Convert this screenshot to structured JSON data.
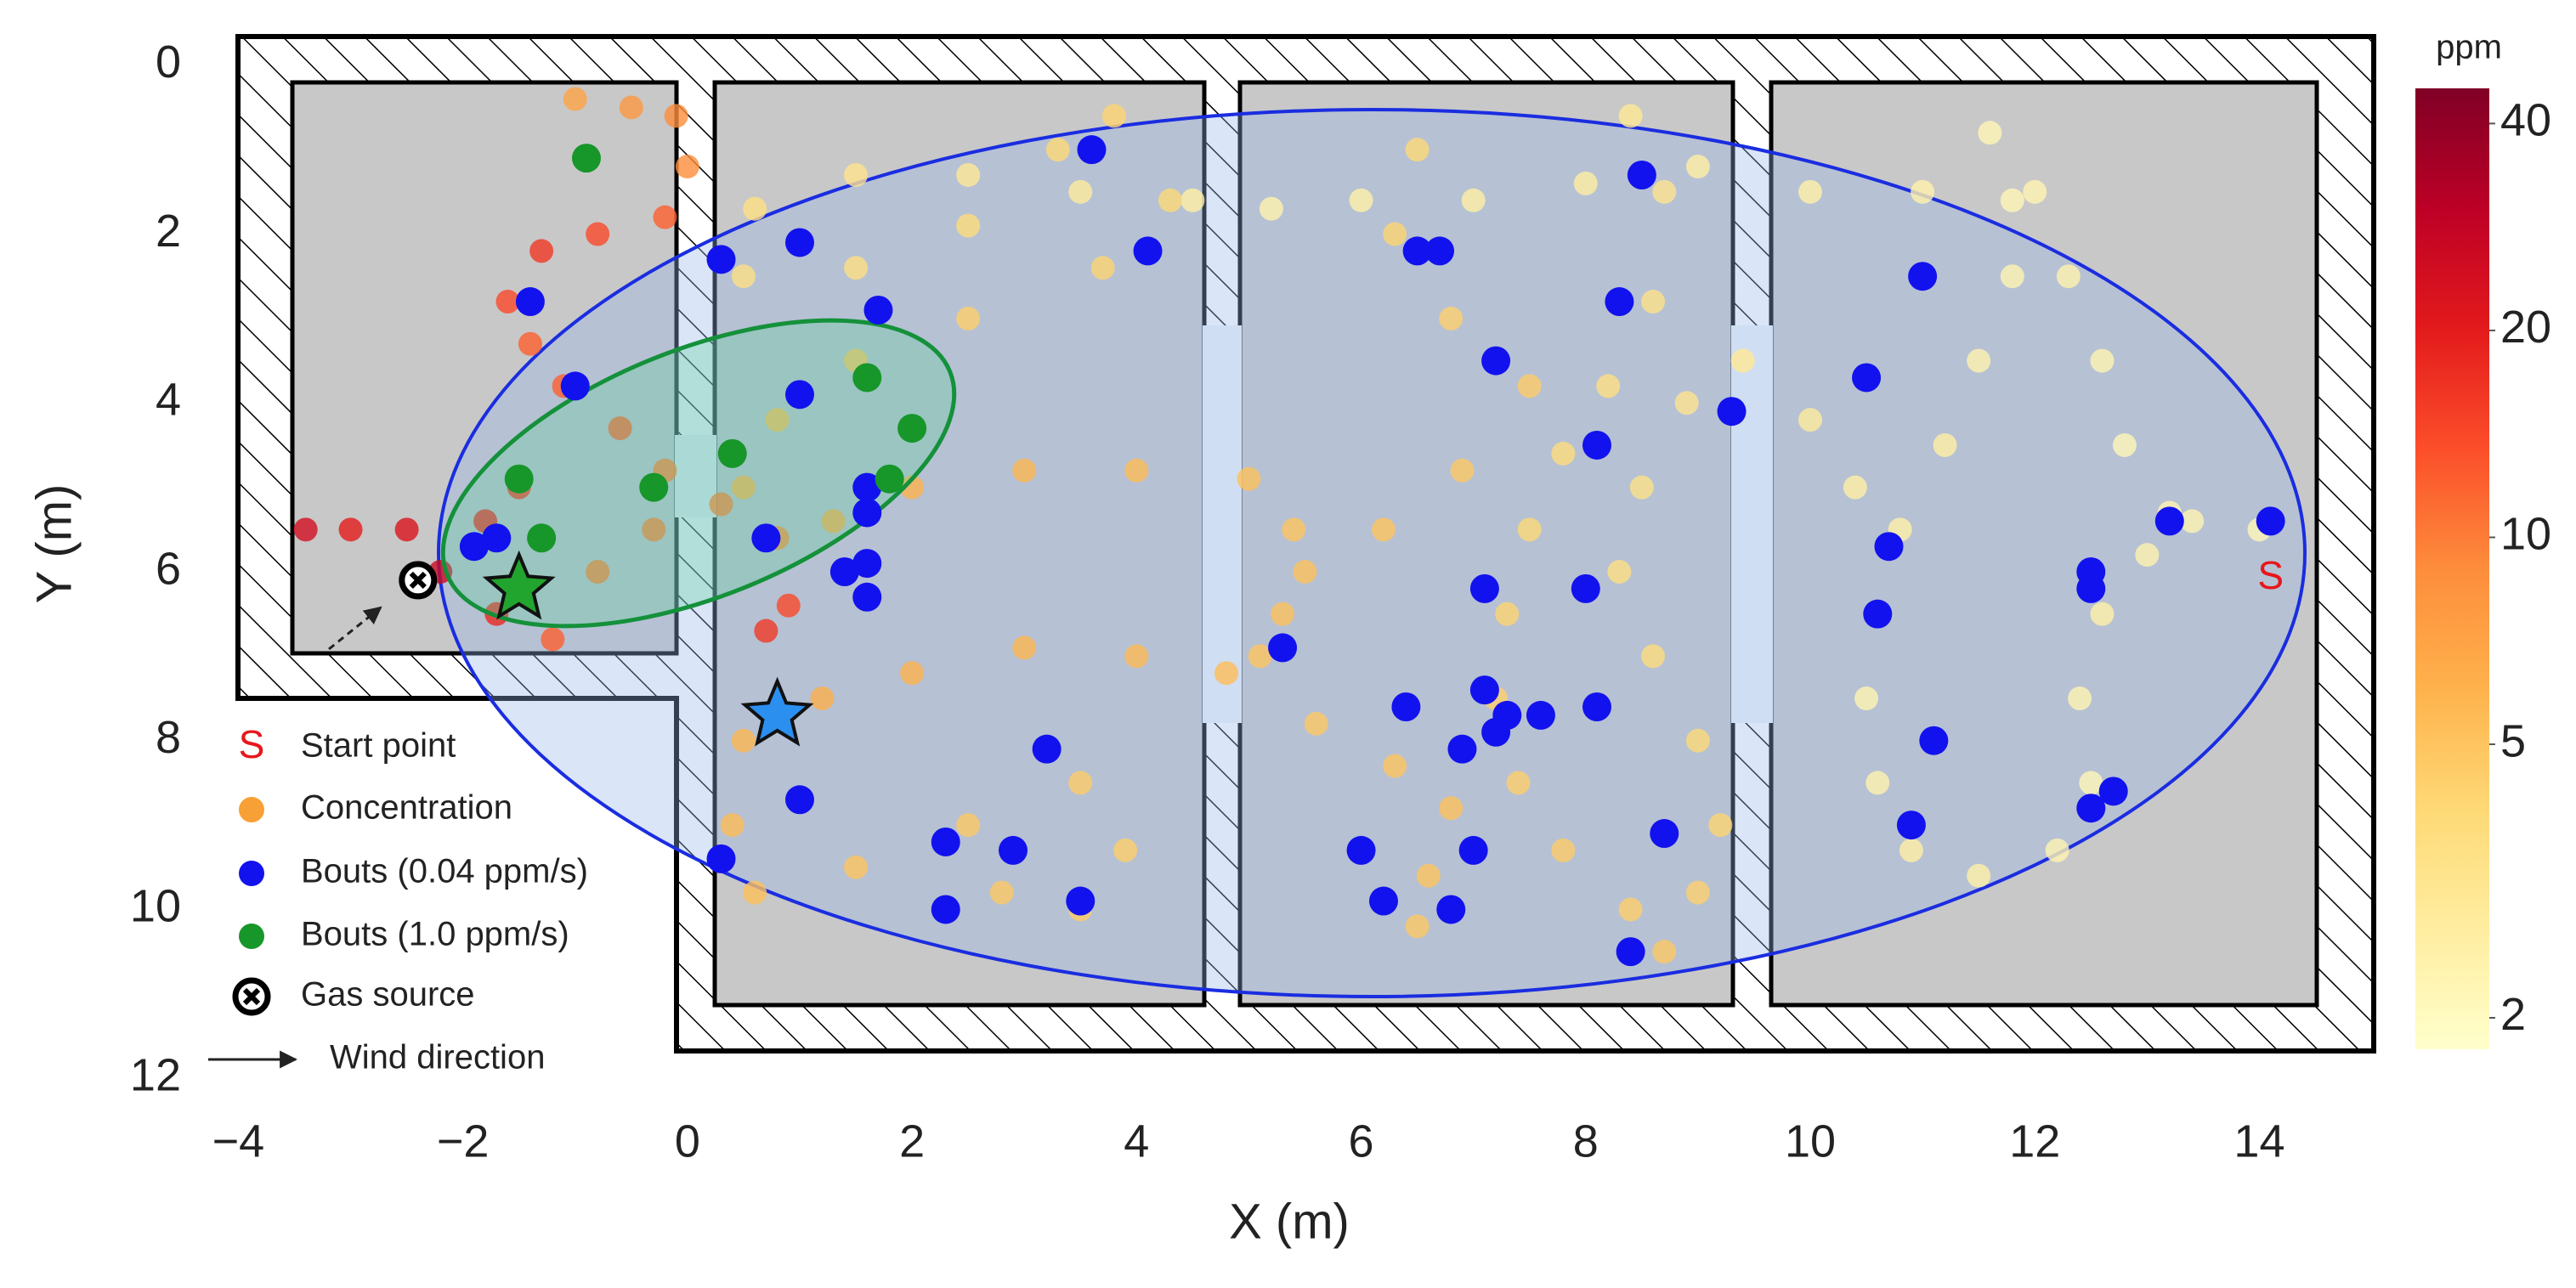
{
  "chart_data": {
    "type": "scatter",
    "xlabel": "X (m)",
    "ylabel": "Y (m)",
    "xlim": [
      -4.2,
      15.2
    ],
    "ylim": [
      12.3,
      -0.3
    ],
    "xticks": [
      {
        "value": -4,
        "label": "−4"
      },
      {
        "value": -2,
        "label": "−2"
      },
      0,
      2,
      4,
      6,
      8,
      10,
      12,
      14
    ],
    "yticks": [
      0,
      2,
      4,
      6,
      8,
      10,
      12
    ],
    "colorbar": {
      "label": "ppm",
      "scale": "log",
      "lim": [
        1.8,
        45
      ],
      "ticks": [
        2,
        5,
        10,
        20,
        40
      ],
      "colors": [
        "#ffffcc",
        "#ffeda0",
        "#fed976",
        "#feb24c",
        "#fd8d3c",
        "#fc4e2a",
        "#e31a1c",
        "#bd0026",
        "#800026"
      ]
    },
    "series": [
      {
        "name": "Start point",
        "marker": "S",
        "color": "#e8161c",
        "x": [
          14.1
        ],
        "values": [
          5.9
        ]
      },
      {
        "name": "Concentration",
        "color": "#f7a035",
        "x": [
          14.0,
          13.4,
          13.0,
          12.6,
          12.4,
          12.5,
          12.2,
          11.5,
          10.9,
          10.6,
          10.5,
          10.6,
          10.8,
          11.2,
          11.5,
          11.8,
          11.8,
          11.6,
          12.0,
          12.3,
          12.6,
          12.8,
          13.2,
          11.0,
          10.0,
          9.0,
          8.0,
          7.0,
          6.0,
          5.2,
          4.5,
          3.5,
          2.5,
          1.5,
          0.6,
          8.4,
          8.7,
          8.6,
          8.2,
          7.8,
          7.5,
          7.3,
          7.2,
          7.4,
          7.8,
          8.4,
          8.7,
          9.0,
          9.2,
          9.0,
          8.6,
          8.3,
          8.5,
          8.9,
          9.4,
          10.0,
          10.4,
          6.5,
          6.3,
          6.8,
          7.5,
          6.9,
          6.2,
          5.5,
          5.1,
          5.6,
          6.3,
          6.8,
          6.6,
          6.5,
          1.3,
          2.0,
          3.0,
          4.0,
          5.0,
          5.4,
          5.3,
          4.8,
          4.0,
          3.0,
          2.0,
          1.2,
          0.5,
          0.4,
          0.6,
          1.5,
          2.5,
          3.5,
          3.9,
          3.5,
          2.8,
          0.5,
          1.5,
          2.5,
          3.3,
          3.8,
          4.3,
          3.7,
          2.5,
          1.5,
          0.8,
          0.5,
          -1.0,
          -0.5,
          -0.1,
          0.0,
          -0.2,
          -0.8,
          -1.3,
          -1.6,
          -1.4,
          -1.1,
          -0.6,
          -0.2,
          0.3,
          0.8,
          0.9,
          0.7,
          -1.5,
          -1.8,
          -2.5,
          -3.0,
          -3.4,
          -2.2,
          -1.7,
          -1.2,
          -0.8,
          -0.3
        ],
        "values": [
          5.5,
          5.4,
          5.8,
          6.5,
          7.5,
          8.5,
          9.3,
          9.6,
          9.3,
          8.5,
          7.5,
          6.5,
          5.5,
          4.5,
          3.5,
          2.5,
          1.6,
          0.8,
          1.5,
          2.5,
          3.5,
          4.5,
          5.3,
          1.5,
          1.5,
          1.2,
          1.4,
          1.6,
          1.6,
          1.7,
          1.6,
          1.5,
          1.3,
          1.3,
          1.7,
          0.6,
          1.5,
          2.8,
          3.8,
          4.6,
          5.5,
          6.5,
          7.5,
          8.5,
          9.3,
          10.0,
          10.5,
          9.8,
          9.0,
          8.0,
          7.0,
          6.0,
          5.0,
          4.0,
          3.5,
          4.2,
          5.0,
          1.0,
          2.0,
          3.0,
          3.8,
          4.8,
          5.5,
          6.0,
          7.0,
          7.8,
          8.3,
          8.8,
          9.6,
          10.2,
          5.4,
          5.0,
          4.8,
          4.8,
          4.9,
          5.5,
          6.5,
          7.2,
          7.0,
          6.9,
          7.2,
          7.5,
          8.0,
          9.0,
          9.8,
          9.5,
          9.0,
          8.5,
          9.3,
          10.0,
          9.8,
          2.5,
          2.4,
          1.9,
          1.0,
          0.6,
          1.6,
          2.4,
          3.0,
          3.5,
          4.2,
          5.0,
          0.4,
          0.5,
          0.6,
          1.2,
          1.8,
          2.0,
          2.2,
          2.8,
          3.3,
          3.8,
          4.3,
          4.8,
          5.2,
          5.6,
          6.4,
          6.7,
          5.0,
          5.4,
          5.5,
          5.5,
          5.5,
          6.0,
          6.5,
          6.8,
          6.0,
          5.5
        ],
        "ppm": [
          2.2,
          2.3,
          2.4,
          2.5,
          2.3,
          2.2,
          2.3,
          2.5,
          2.6,
          2.4,
          2.3,
          2.4,
          2.5,
          2.6,
          2.4,
          2.3,
          2.2,
          2.2,
          2.3,
          2.4,
          2.3,
          2.2,
          2.3,
          2.4,
          2.5,
          2.6,
          2.7,
          2.6,
          2.5,
          2.4,
          2.6,
          2.8,
          3.0,
          3.2,
          3.5,
          3.0,
          3.2,
          3.4,
          3.6,
          3.8,
          4.0,
          4.2,
          4.4,
          4.5,
          4.6,
          4.5,
          4.8,
          4.4,
          4.2,
          4.0,
          3.8,
          3.6,
          3.4,
          3.2,
          3.0,
          2.8,
          2.6,
          4.0,
          4.2,
          4.4,
          4.6,
          4.8,
          5.0,
          5.2,
          5.0,
          4.8,
          5.0,
          5.2,
          5.0,
          4.8,
          6.5,
          6.0,
          5.8,
          5.5,
          5.2,
          5.0,
          5.2,
          5.4,
          5.6,
          5.8,
          6.0,
          6.2,
          5.8,
          5.5,
          5.2,
          5.0,
          4.8,
          4.6,
          4.5,
          4.6,
          4.8,
          3.5,
          3.6,
          3.8,
          4.0,
          4.2,
          4.0,
          4.2,
          4.5,
          5.0,
          5.5,
          6.0,
          7,
          8,
          9,
          9,
          12,
          14,
          16,
          14,
          12,
          12,
          12,
          10,
          10,
          9,
          14,
          16,
          16,
          18,
          22,
          20,
          24,
          26,
          18,
          12,
          10,
          10
        ]
      },
      {
        "name": "Bouts (0.04 ppm/s)",
        "color": "#1212ee",
        "x": [
          3.6,
          1.0,
          0.3,
          4.1,
          -1.4,
          1.7,
          6.5,
          6.7,
          8.5,
          8.3,
          11.0,
          -1.0,
          1.0,
          7.2,
          8.1,
          10.5,
          9.3,
          13.2,
          14.1,
          12.5,
          12.5,
          10.7,
          8.0,
          7.1,
          10.6,
          1.6,
          1.6,
          0.7,
          1.4,
          1.6,
          1.6,
          -1.7,
          -1.9,
          5.3,
          7.1,
          6.4,
          8.1,
          7.6,
          7.3,
          7.2,
          6.9,
          11.1,
          12.7,
          12.5,
          3.2,
          1.0,
          0.3,
          2.3,
          2.9,
          2.3,
          3.5,
          6.0,
          7.0,
          6.2,
          6.8,
          8.7,
          8.4,
          10.9
        ],
        "values": [
          1.0,
          2.1,
          2.3,
          2.2,
          2.8,
          2.9,
          2.2,
          2.2,
          1.3,
          2.8,
          2.5,
          3.8,
          3.9,
          3.5,
          4.5,
          3.7,
          4.1,
          5.4,
          5.4,
          6.0,
          6.2,
          5.7,
          6.2,
          6.2,
          6.5,
          5.0,
          5.3,
          5.6,
          6.0,
          5.9,
          6.3,
          5.6,
          5.7,
          6.9,
          7.4,
          7.6,
          7.6,
          7.7,
          7.7,
          7.9,
          8.1,
          8.0,
          8.6,
          8.8,
          8.1,
          8.7,
          9.4,
          9.2,
          9.3,
          10.0,
          9.9,
          9.3,
          9.3,
          9.9,
          10.0,
          9.1,
          10.5,
          9.0
        ]
      },
      {
        "name": "Bouts (1.0 ppm/s)",
        "color": "#17962a",
        "x": [
          -0.9,
          -1.5,
          0.4,
          -0.3,
          -1.3,
          1.6,
          2.0,
          1.8
        ],
        "values": [
          1.1,
          4.9,
          4.6,
          5.0,
          5.6,
          3.7,
          4.3,
          4.9
        ]
      },
      {
        "name": "Gas source",
        "color": "#ffffff",
        "x": [
          -2.4
        ],
        "values": [
          6.1
        ]
      }
    ],
    "wind_label": "Wind direction",
    "stars": [
      {
        "x": -1.5,
        "y": 6.2,
        "color": "#22a52e"
      },
      {
        "x": 0.8,
        "y": 7.7,
        "color": "#2b8ff0"
      }
    ]
  }
}
